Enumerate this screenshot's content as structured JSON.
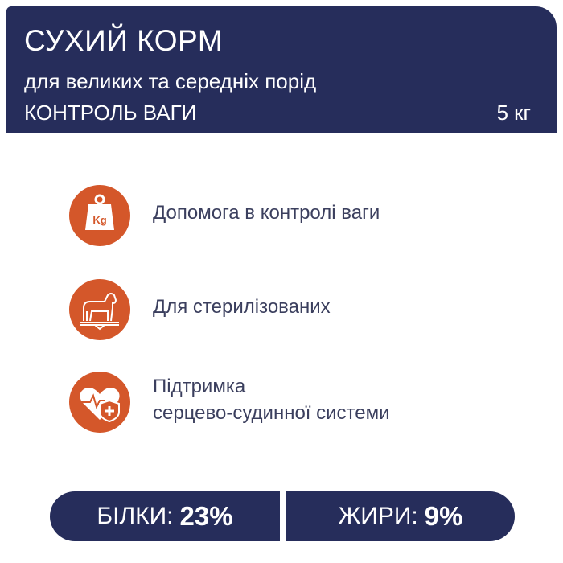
{
  "header": {
    "title": "СУХИЙ КОРМ",
    "subtitle": "для великих та середніх порід",
    "line": "КОНТРОЛЬ ВАГИ",
    "weight": "5 кг"
  },
  "features": [
    {
      "icon": "kg-weight-icon",
      "text": "Допомога в контролі ваги"
    },
    {
      "icon": "dog-on-scale-icon",
      "text": "Для стерилізованих"
    },
    {
      "icon": "heart-shield-icon",
      "line1": "Підтримка",
      "line2": "серцево-судинної системи"
    }
  ],
  "nutrients": [
    {
      "label": "БІЛКИ:",
      "value": "23%"
    },
    {
      "label": "ЖИРИ:",
      "value": "9%"
    }
  ],
  "colors": {
    "navy": "#262d5b",
    "accent": "#d4572a"
  },
  "icon_text": {
    "kg": "Kg"
  }
}
